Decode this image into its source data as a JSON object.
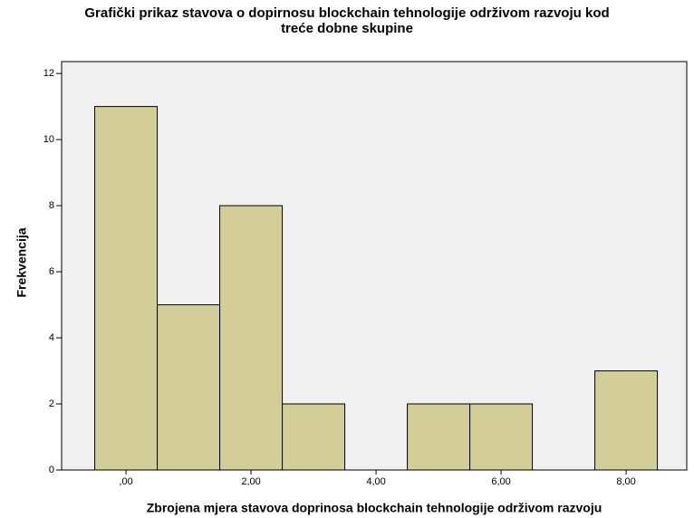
{
  "chart_data": {
    "type": "histogram",
    "title": [
      "Grafički prikaz stavova o dopirnosu blockchain tehnologije održivom razvoju kod",
      "treće dobne skupine"
    ],
    "x_label": "Zbrojena mjera stavova doprinosa blockchain tehnologije održivom razvoju",
    "y_label": "Frekvencija",
    "bins": [
      -0.5,
      0.5,
      1.5,
      2.5,
      3.5,
      4.5,
      5.5,
      6.5,
      7.5,
      8.5
    ],
    "values": [
      11,
      5,
      8,
      2,
      0,
      2,
      2,
      0,
      3
    ],
    "color": "#d3ce97",
    "xlim": [
      -1.03,
      8.97
    ],
    "xticks": [
      {
        "value": 0,
        "label": ",00"
      },
      {
        "value": 2,
        "label": "2,00"
      },
      {
        "value": 4,
        "label": "4,00"
      },
      {
        "value": 6,
        "label": "6,00"
      },
      {
        "value": 8,
        "label": "8,00"
      }
    ],
    "ylim": [
      0,
      12.36
    ],
    "yticks": [
      0,
      2,
      4,
      6,
      8,
      10,
      12
    ]
  }
}
